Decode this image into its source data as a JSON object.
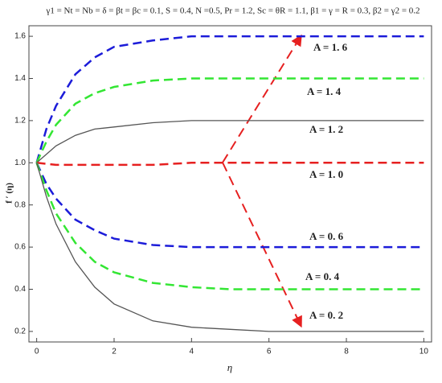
{
  "chart_data": {
    "type": "line",
    "title": "γ1 = Nt = Nb = δ = βt = βc = 0.1, S = 0.4, N =0.5, Pr = 1.2, Sc = θR = 1.1, β1 = γ = R = 0.3, β2 = γ2 = 0.2",
    "x_label": "η",
    "y_label": "f ′ (η)",
    "x": [
      0,
      0.25,
      0.5,
      1,
      1.5,
      2,
      3,
      4,
      5,
      6,
      8,
      10
    ],
    "series": [
      {
        "name": "A = 1. 6",
        "color": "#1c1cd9",
        "dashed": true,
        "values": [
          1,
          1.16,
          1.27,
          1.42,
          1.5,
          1.55,
          1.58,
          1.6,
          1.6,
          1.6,
          1.6,
          1.6
        ]
      },
      {
        "name": "A = 1. 4",
        "color": "#33e633",
        "dashed": true,
        "values": [
          1,
          1.1,
          1.18,
          1.28,
          1.33,
          1.36,
          1.39,
          1.4,
          1.4,
          1.4,
          1.4,
          1.4
        ]
      },
      {
        "name": "A = 1. 2",
        "color": "#555555",
        "dashed": false,
        "values": [
          1,
          1.04,
          1.08,
          1.13,
          1.16,
          1.17,
          1.19,
          1.2,
          1.2,
          1.2,
          1.2,
          1.2
        ]
      },
      {
        "name": "A = 1. 0",
        "color": "#e62020",
        "dashed": true,
        "values": [
          1,
          0.995,
          0.99,
          0.99,
          0.99,
          0.99,
          0.99,
          1,
          1,
          1,
          1,
          1
        ]
      },
      {
        "name": "A = 0. 6",
        "color": "#1c1cd9",
        "dashed": true,
        "values": [
          1,
          0.9,
          0.83,
          0.73,
          0.68,
          0.64,
          0.61,
          0.6,
          0.6,
          0.6,
          0.6,
          0.6
        ]
      },
      {
        "name": "A = 0. 4",
        "color": "#33e633",
        "dashed": true,
        "values": [
          1,
          0.87,
          0.76,
          0.62,
          0.53,
          0.48,
          0.43,
          0.41,
          0.4,
          0.4,
          0.4,
          0.4
        ]
      },
      {
        "name": "A = 0. 2",
        "color": "#555555",
        "dashed": false,
        "values": [
          1,
          0.84,
          0.71,
          0.53,
          0.41,
          0.33,
          0.25,
          0.22,
          0.21,
          0.2,
          0.2,
          0.2
        ]
      }
    ],
    "xlim": [
      -0.2,
      10.2
    ],
    "xticks": [
      0,
      2,
      4,
      6,
      8,
      10
    ],
    "ylim": [
      0.15,
      1.65
    ],
    "yticks": [
      0.2,
      0.4,
      0.6,
      0.8,
      {
        "value": 1,
        "label": "1.0"
      },
      1.2,
      1.4,
      1.6
    ]
  }
}
